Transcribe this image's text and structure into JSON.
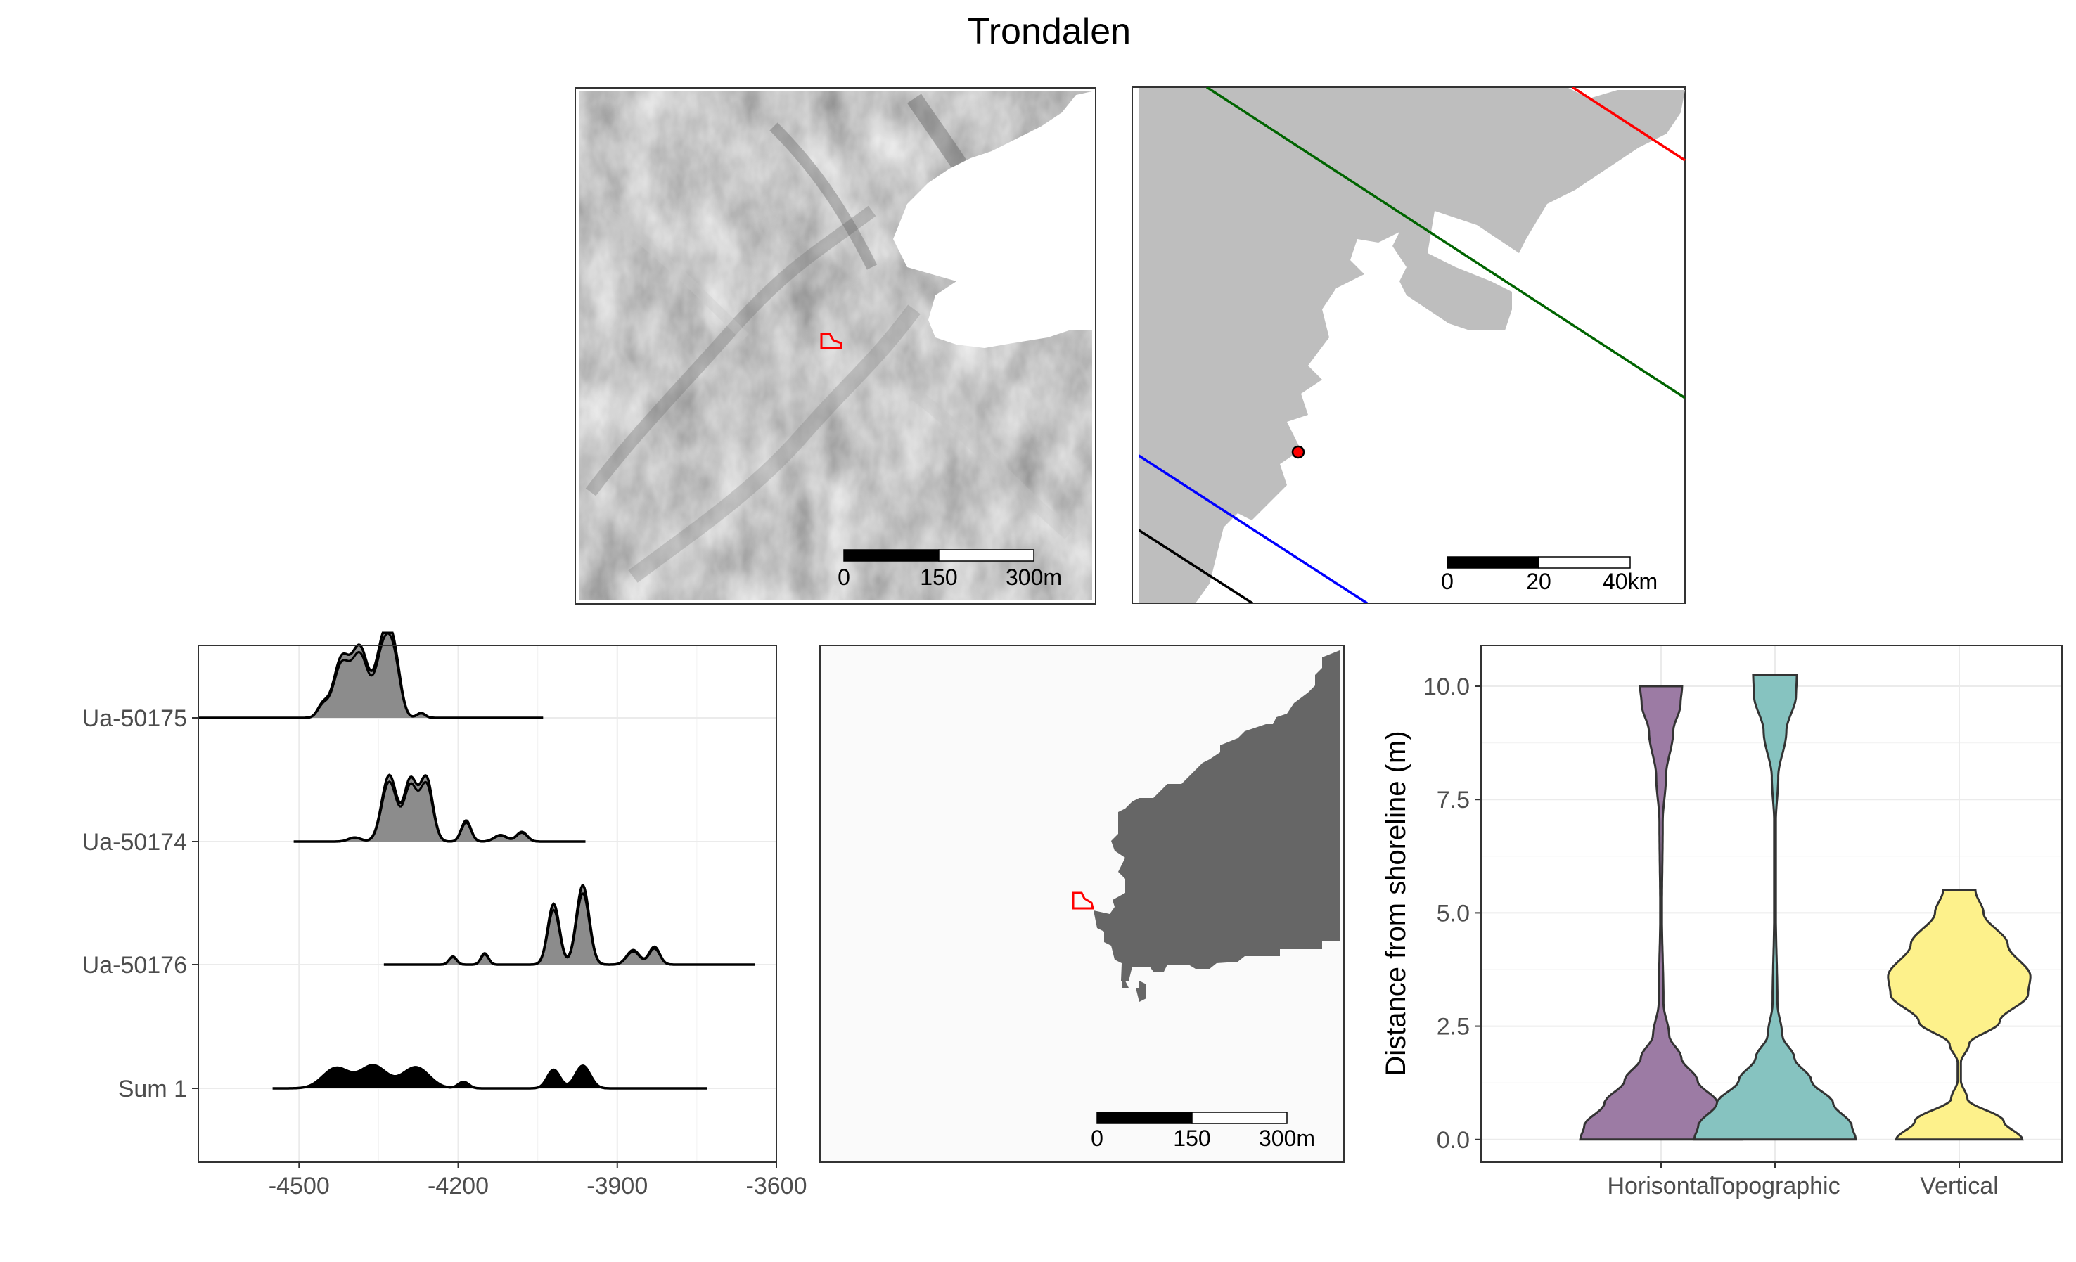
{
  "title": "Trondalen",
  "panels": {
    "hillshade": {
      "scale_labels": [
        "0",
        "150",
        "300m"
      ],
      "colors": {
        "site_outline": "#ff0000",
        "water": "#ffffff",
        "relief_mid": "#a6a6a6"
      }
    },
    "overview": {
      "scale_labels": [
        "0",
        "20",
        "40km"
      ],
      "colors": {
        "land": "#bebebe",
        "sea": "#ffffff",
        "site_point": "#ff0000"
      },
      "isobase_colors": [
        "#ff0000",
        "#006400",
        "#0000ff",
        "#000000"
      ]
    },
    "sea_level_map": {
      "scale_labels": [
        "0",
        "150",
        "300m"
      ],
      "colors": {
        "sea": "#666666",
        "land": "#fafafa",
        "site_outline": "#ff0000"
      }
    }
  },
  "chart_data": [
    {
      "type": "area",
      "subtype": "ridgeline",
      "xlabel": "",
      "ylabel": "",
      "xlim": [
        -4690,
        -3600
      ],
      "x_ticks": [
        -4500,
        -4200,
        -3900,
        -3600
      ],
      "x_tick_labels": [
        "-4500",
        "-4200",
        "-3900",
        "-3600"
      ],
      "categories": [
        "Ua-50175",
        "Ua-50174",
        "Ua-50176",
        "Sum 1"
      ],
      "series": [
        {
          "name": "Ua-50175",
          "range": [
            -4690,
            -4040
          ],
          "peaks": [
            [
              -4455,
              0.16,
              10
            ],
            [
              -4420,
              0.72,
              15
            ],
            [
              -4385,
              0.84,
              15
            ],
            [
              -4340,
              0.95,
              15
            ],
            [
              -4320,
              0.55,
              12
            ],
            [
              -4270,
              0.06,
              8
            ]
          ]
        },
        {
          "name": "Ua-50174",
          "range": [
            -4510,
            -3960
          ],
          "peaks": [
            [
              -4395,
              0.05,
              12
            ],
            [
              -4330,
              0.82,
              14
            ],
            [
              -4290,
              0.75,
              12
            ],
            [
              -4260,
              0.78,
              12
            ],
            [
              -4185,
              0.26,
              9
            ],
            [
              -4120,
              0.08,
              12
            ],
            [
              -4080,
              0.12,
              10
            ]
          ]
        },
        {
          "name": "Ua-50176",
          "range": [
            -4340,
            -3640
          ],
          "peaks": [
            [
              -4210,
              0.1,
              7
            ],
            [
              -4150,
              0.14,
              7
            ],
            [
              -4020,
              0.75,
              11
            ],
            [
              -3965,
              0.98,
              12
            ],
            [
              -3870,
              0.18,
              12
            ],
            [
              -3830,
              0.22,
              10
            ]
          ]
        },
        {
          "name": "Sum 1",
          "range": [
            -4550,
            -3730
          ],
          "peaks": [
            [
              -4430,
              0.25,
              25
            ],
            [
              -4360,
              0.28,
              25
            ],
            [
              -4280,
              0.26,
              25
            ],
            [
              -4190,
              0.08,
              10
            ],
            [
              -4020,
              0.23,
              12
            ],
            [
              -3965,
              0.28,
              14
            ]
          ]
        }
      ]
    },
    {
      "type": "violin",
      "xlabel": "",
      "ylabel": "Distance from shoreline (m)",
      "ylim": [
        -0.5,
        10.9
      ],
      "y_ticks": [
        0.0,
        2.5,
        5.0,
        7.5,
        10.0
      ],
      "y_tick_labels": [
        "0.0",
        "2.5",
        "5.0",
        "7.5",
        "10.0"
      ],
      "categories": [
        "Horisontal",
        "Topographic",
        "Vertical"
      ],
      "series": [
        {
          "name": "Horisontal",
          "color": "#9c7ba4",
          "range": [
            0.0,
            10.0
          ],
          "profile": [
            [
              0.0,
              1.0
            ],
            [
              0.3,
              0.95
            ],
            [
              0.8,
              0.7
            ],
            [
              1.3,
              0.45
            ],
            [
              1.8,
              0.25
            ],
            [
              2.3,
              0.1
            ],
            [
              3.0,
              0.03
            ],
            [
              5.0,
              0.01
            ],
            [
              7.0,
              0.02
            ],
            [
              8.0,
              0.06
            ],
            [
              9.0,
              0.15
            ],
            [
              9.6,
              0.24
            ],
            [
              10.0,
              0.26
            ]
          ]
        },
        {
          "name": "Topographic",
          "color": "#86c3c0",
          "range": [
            0.0,
            10.25
          ],
          "profile": [
            [
              0.0,
              1.0
            ],
            [
              0.3,
              0.95
            ],
            [
              0.8,
              0.72
            ],
            [
              1.3,
              0.45
            ],
            [
              1.8,
              0.24
            ],
            [
              2.3,
              0.09
            ],
            [
              3.0,
              0.03
            ],
            [
              5.0,
              0.01
            ],
            [
              7.0,
              0.01
            ],
            [
              8.0,
              0.04
            ],
            [
              9.0,
              0.14
            ],
            [
              9.8,
              0.26
            ],
            [
              10.25,
              0.27
            ]
          ]
        },
        {
          "name": "Vertical",
          "color": "#fdf18b",
          "range": [
            0.0,
            5.5
          ],
          "profile": [
            [
              0.0,
              0.78
            ],
            [
              0.4,
              0.55
            ],
            [
              0.9,
              0.1
            ],
            [
              1.3,
              0.02
            ],
            [
              1.7,
              0.02
            ],
            [
              2.1,
              0.12
            ],
            [
              2.6,
              0.5
            ],
            [
              3.2,
              0.85
            ],
            [
              3.6,
              0.88
            ],
            [
              4.3,
              0.6
            ],
            [
              5.0,
              0.3
            ],
            [
              5.5,
              0.2
            ]
          ]
        }
      ]
    }
  ]
}
